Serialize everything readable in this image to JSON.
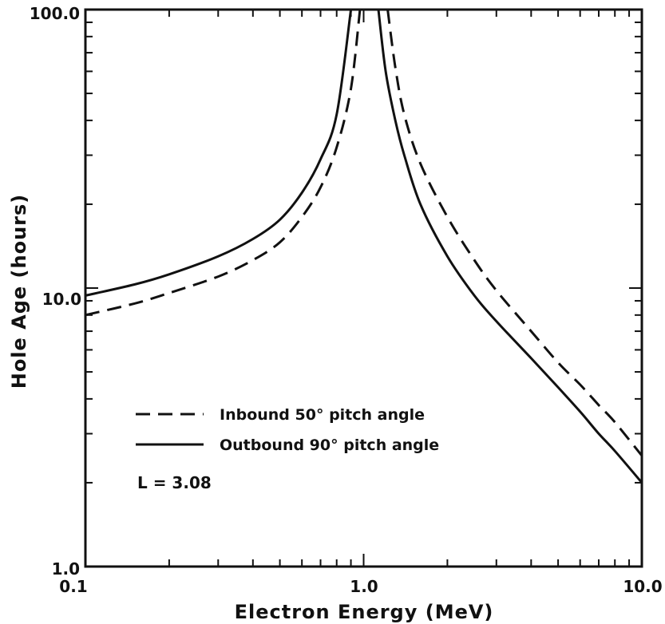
{
  "chart_data": {
    "type": "line",
    "title": "",
    "xlabel": "Electron Energy (MeV)",
    "ylabel": "Hole Age (hours)",
    "xscale": "log",
    "yscale": "log",
    "xlim": [
      0.1,
      10.0
    ],
    "ylim": [
      1.0,
      100.0
    ],
    "x_tick_labels": [
      "0.1",
      "1.0",
      "10.0"
    ],
    "y_tick_labels": [
      "1.0",
      "10.0",
      "100.0"
    ],
    "grid": false,
    "legend_position": "lower-left",
    "annotations": [
      "L = 3.08"
    ],
    "series": [
      {
        "name": "Inbound 50° pitch angle",
        "style": "dashed",
        "color": "#111111",
        "x": [
          0.1,
          0.15,
          0.2,
          0.3,
          0.4,
          0.5,
          0.6,
          0.7,
          0.8,
          0.9,
          0.97,
          1.22,
          1.3,
          1.4,
          1.6,
          2.0,
          2.5,
          3.0,
          4.0,
          5.0,
          6.0,
          7.0,
          8.0,
          10.0
        ],
        "y": [
          8.0,
          8.8,
          9.6,
          11.0,
          12.6,
          14.6,
          18.0,
          23.0,
          32.0,
          52.0,
          100.0,
          100.0,
          62.0,
          42.0,
          28.0,
          18.0,
          12.6,
          9.8,
          7.0,
          5.4,
          4.5,
          3.8,
          3.3,
          2.5
        ]
      },
      {
        "name": "Outbound 90° pitch angle",
        "style": "solid",
        "color": "#111111",
        "x": [
          0.1,
          0.15,
          0.2,
          0.3,
          0.4,
          0.5,
          0.6,
          0.7,
          0.8,
          0.9,
          1.13,
          1.2,
          1.3,
          1.4,
          1.6,
          2.0,
          2.5,
          3.0,
          4.0,
          5.0,
          6.0,
          7.0,
          8.0,
          10.0
        ],
        "y": [
          9.4,
          10.3,
          11.2,
          13.0,
          15.0,
          17.6,
          22.0,
          29.0,
          42.0,
          100.0,
          100.0,
          60.0,
          40.0,
          30.0,
          20.0,
          13.0,
          9.4,
          7.6,
          5.6,
          4.4,
          3.6,
          3.0,
          2.6,
          2.0
        ]
      }
    ]
  }
}
